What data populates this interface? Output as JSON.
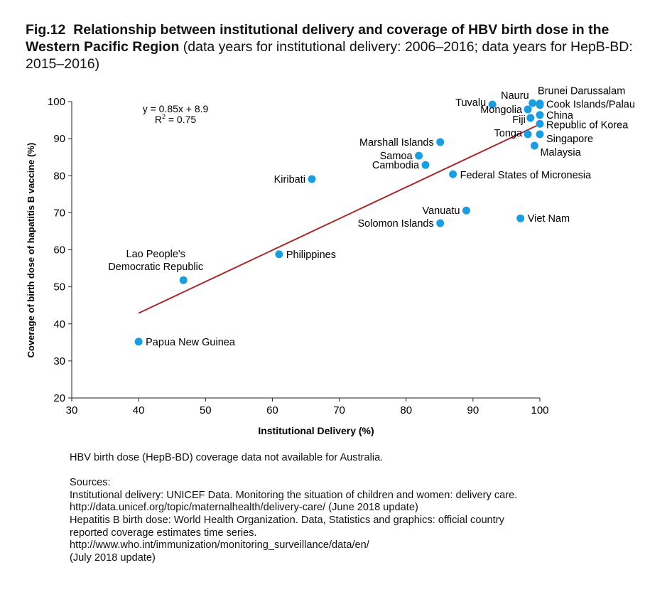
{
  "title": {
    "fig": "Fig.12",
    "bold": "Relationship between institutional delivery and coverage of HBV birth dose in the Western Pacific Region",
    "normal": "(data years for institutional delivery: 2006–2016; data years for HepB-BD: 2015–2016)"
  },
  "chart_data": {
    "type": "scatter",
    "xlabel": "Institutional Delivery (%)",
    "ylabel": "Coverage of birth dose of hapatitis B vaccine (%)",
    "xlim": [
      30,
      100
    ],
    "ylim": [
      20,
      100
    ],
    "xticks": [
      "30",
      "40",
      "50",
      "60",
      "70",
      "80",
      "90",
      "100"
    ],
    "yticks": [
      "20",
      "30",
      "40",
      "50",
      "60",
      "70",
      "80",
      "90",
      "100"
    ],
    "point_color": "#1a9ee0",
    "trend_color": "#a52a2a",
    "trendline": {
      "equation": "y = 0.85x + 8.9",
      "r2_label": "R",
      "r2_sup": "2",
      "r2_value": " = 0.75",
      "slope": 0.85,
      "intercept": 8.9,
      "x_range": [
        40,
        99.5
      ]
    },
    "points": [
      {
        "label": "Papua New Guinea",
        "x": 40,
        "y": 35.2
      },
      {
        "label": "Lao People's",
        "label2": "Democratic Republic",
        "x": 46.7,
        "y": 51.8
      },
      {
        "label": "Philippines",
        "x": 61.0,
        "y": 58.8
      },
      {
        "label": "Kiribati",
        "x": 65.9,
        "y": 79.1
      },
      {
        "label": "Marshall Islands",
        "x": 85.1,
        "y": 89.1
      },
      {
        "label": "Samoa",
        "x": 81.9,
        "y": 85.4
      },
      {
        "label": "Cambodia",
        "x": 82.9,
        "y": 82.9
      },
      {
        "label": "Federal States of Micronesia",
        "x": 87.0,
        "y": 80.4
      },
      {
        "label": "Vanuatu",
        "x": 89.0,
        "y": 70.6
      },
      {
        "label": "Solomon Islands",
        "x": 85.1,
        "y": 67.2
      },
      {
        "label": "Viet Nam",
        "x": 97.1,
        "y": 68.5
      },
      {
        "label": "Tuvalu",
        "x": 92.9,
        "y": 99.2
      },
      {
        "label": "Nauru",
        "x": 98.9,
        "y": 99.6
      },
      {
        "label": "Brunei Darussalam",
        "x": 100,
        "y": 99.5
      },
      {
        "label": "Cook Islands/Palau",
        "x": 100,
        "y": 99.1
      },
      {
        "label": "Mongolia",
        "x": 98.2,
        "y": 97.9
      },
      {
        "label": "China",
        "x": 100,
        "y": 96.4
      },
      {
        "label": "Fiji",
        "x": 98.6,
        "y": 95.6
      },
      {
        "label": "Republic of Korea",
        "x": 100,
        "y": 94.0
      },
      {
        "label": "Tonga",
        "x": 98.2,
        "y": 91.2
      },
      {
        "label": "Singapore",
        "x": 100,
        "y": 91.2
      },
      {
        "label": "Malaysia",
        "x": 99.2,
        "y": 88.1
      }
    ]
  },
  "notes": {
    "australia": "HBV birth dose (HepB-BD) coverage data not available for Australia.",
    "sources_heading": "Sources:",
    "lines": [
      "Institutional delivery: UNICEF Data. Monitoring the situation of children and women: delivery care.",
      "http://data.unicef.org/topic/maternalhealth/delivery-care/ (June 2018 update)",
      "Hepatitis B birth dose: World Health Organization. Data, Statistics and graphics: official country",
      "reported coverage estimates time series.",
      "http://www.who.int/immunization/monitoring_surveillance/data/en/",
      "(July 2018 update)"
    ]
  }
}
